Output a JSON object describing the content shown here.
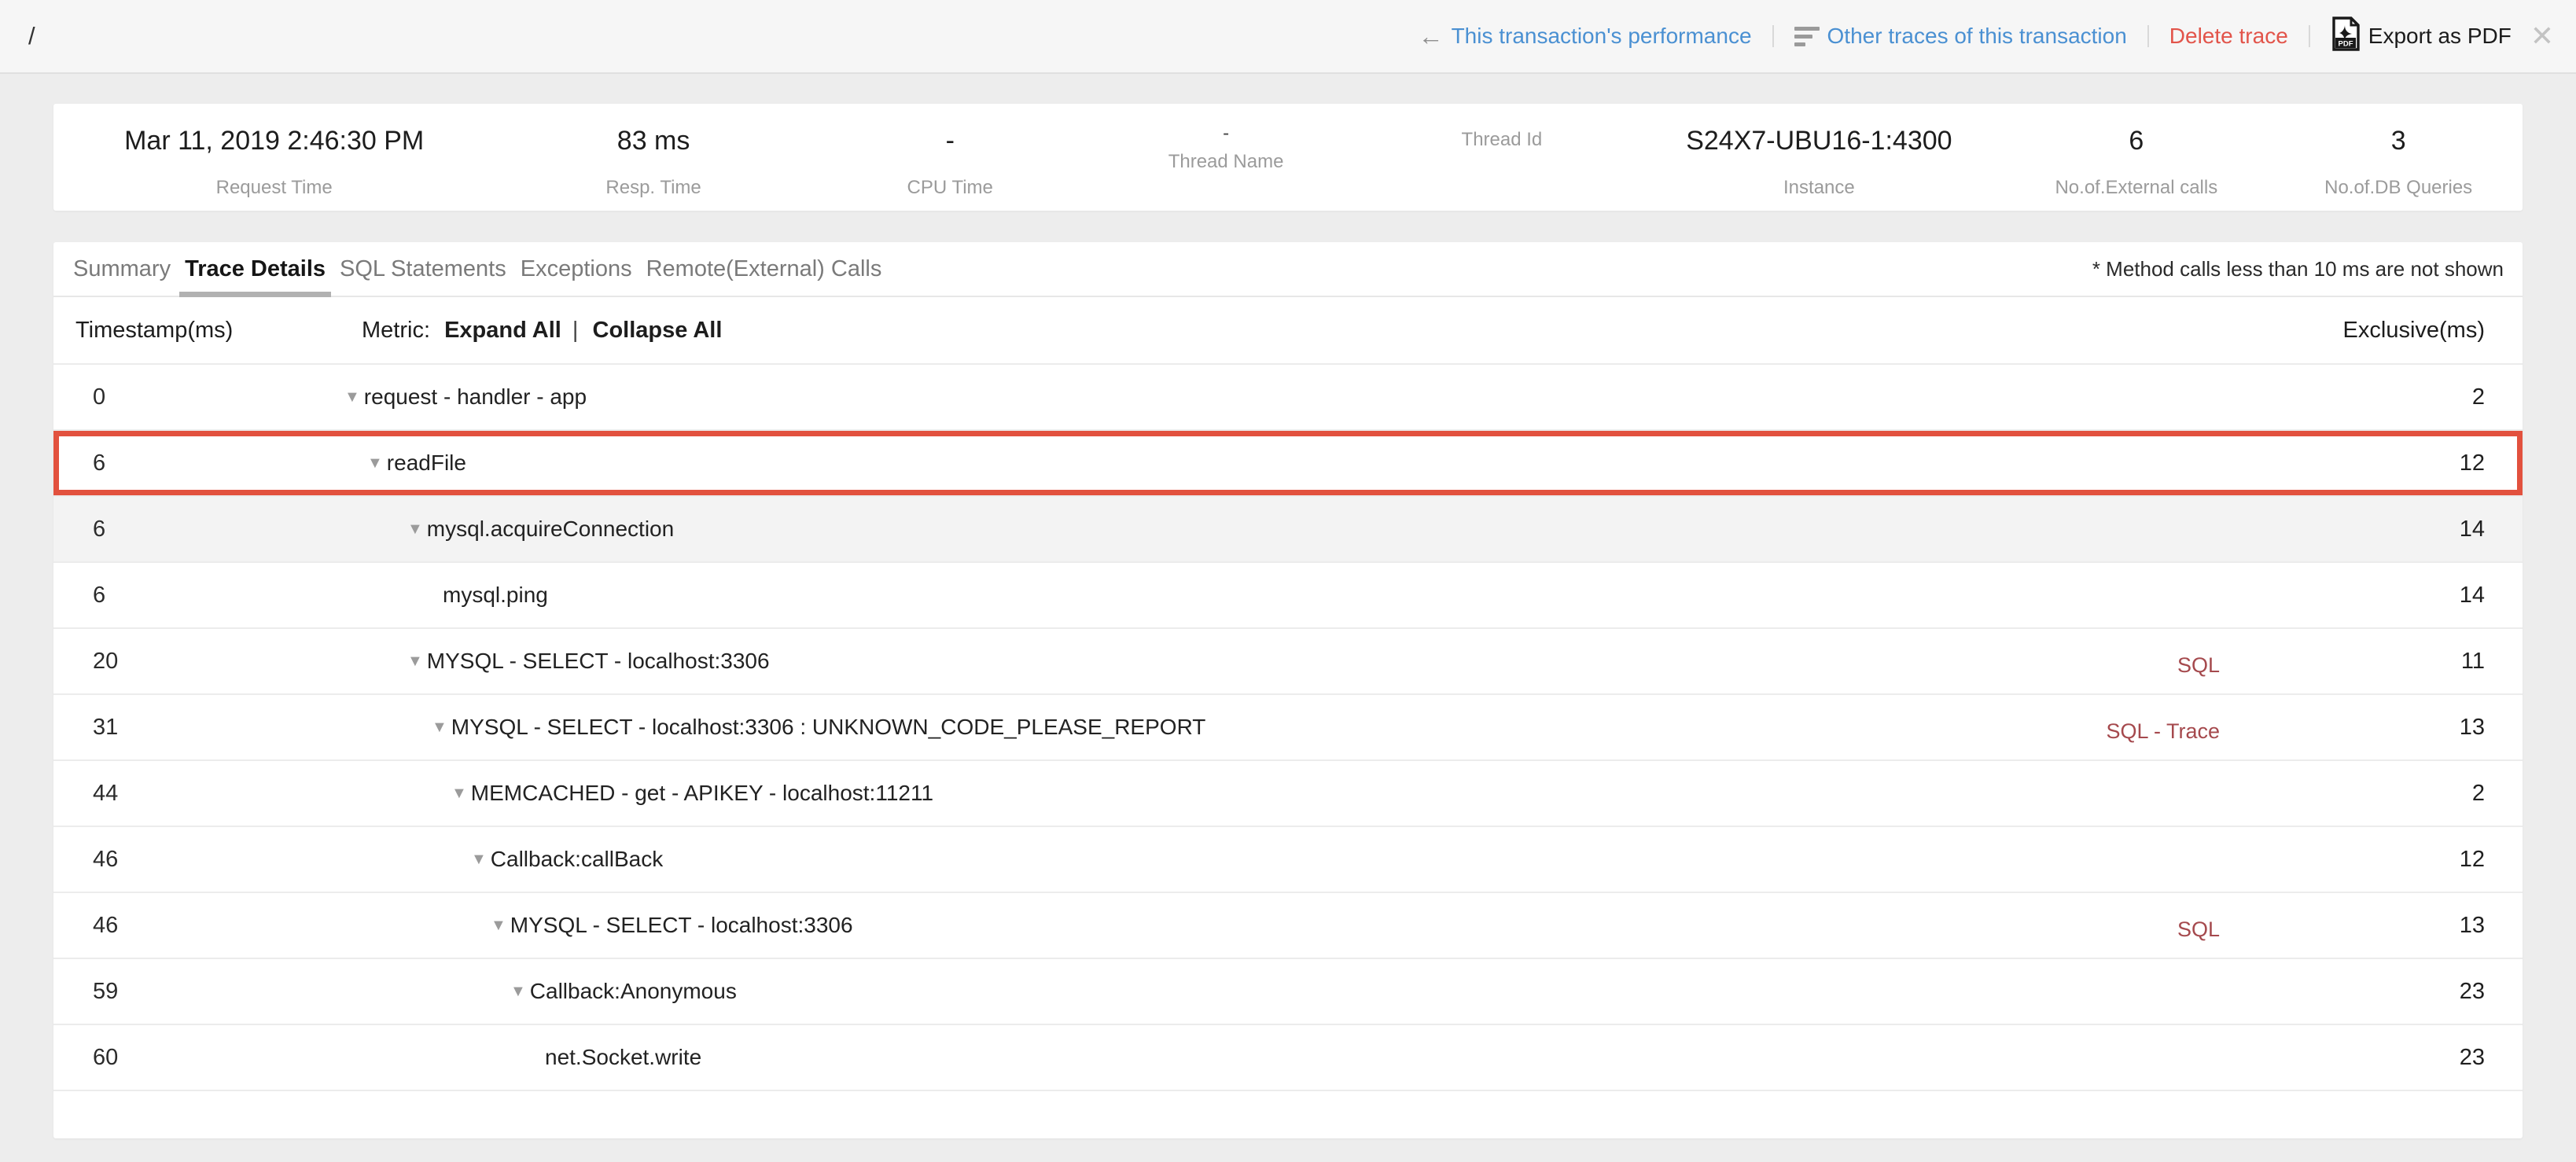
{
  "topbar": {
    "path": "/",
    "performance_link": "This transaction's performance",
    "other_traces_link": "Other traces of this transaction",
    "delete_link": "Delete trace",
    "export_link": "Export as PDF",
    "colors": {
      "link_blue": "#4a90d2",
      "danger_red": "#e2544a"
    }
  },
  "stats": [
    {
      "value": "Mar 11, 2019 2:46:30 PM",
      "label": "Request Time"
    },
    {
      "value": "83 ms",
      "label": "Resp. Time"
    },
    {
      "value": "-",
      "label": "CPU Time"
    },
    {
      "value": "-",
      "label": "Thread Name"
    },
    {
      "value": "",
      "label": "Thread Id"
    },
    {
      "value": "S24X7-UBU16-1:4300",
      "label": "Instance"
    },
    {
      "value": "6",
      "label": "No.of.External calls"
    },
    {
      "value": "3",
      "label": "No.of.DB Queries"
    }
  ],
  "tabs": {
    "items": [
      {
        "label": "Summary",
        "active": false
      },
      {
        "label": "Trace Details",
        "active": true
      },
      {
        "label": "SQL Statements",
        "active": false
      },
      {
        "label": "Exceptions",
        "active": false
      },
      {
        "label": "Remote(External) Calls",
        "active": false
      }
    ],
    "note": "* Method calls less than 10 ms are not shown"
  },
  "table": {
    "headers": {
      "timestamp": "Timestamp(ms)",
      "metric": "Metric:",
      "expand_all": "Expand All",
      "separator": "|",
      "collapse_all": "Collapse All",
      "exclusive": "Exclusive(ms)"
    },
    "link_color": "#a5494d",
    "highlight_color": "#e2513e",
    "rows": [
      {
        "timestamp": "0",
        "metric": "request - handler - app",
        "caret": true,
        "indent": 0,
        "links": [],
        "exclusive": "2",
        "highlight": false,
        "shaded": false
      },
      {
        "timestamp": "6",
        "metric": "readFile",
        "caret": true,
        "indent": 29,
        "links": [],
        "exclusive": "12",
        "highlight": true,
        "shaded": false
      },
      {
        "timestamp": "6",
        "metric": "mysql.acquireConnection",
        "caret": true,
        "indent": 80,
        "links": [],
        "exclusive": "14",
        "highlight": false,
        "shaded": true
      },
      {
        "timestamp": "6",
        "metric": "mysql.ping",
        "caret": false,
        "indent": 125,
        "links": [],
        "exclusive": "14",
        "highlight": false,
        "shaded": false
      },
      {
        "timestamp": "20",
        "metric": "MYSQL - SELECT - localhost:3306",
        "caret": true,
        "indent": 80,
        "links": [
          "SQL"
        ],
        "exclusive": "11",
        "highlight": false,
        "shaded": false
      },
      {
        "timestamp": "31",
        "metric": "MYSQL - SELECT - localhost:3306 : UNKNOWN_CODE_PLEASE_REPORT",
        "caret": true,
        "indent": 111,
        "links": [
          "SQL",
          "Trace"
        ],
        "exclusive": "13",
        "highlight": false,
        "shaded": false
      },
      {
        "timestamp": "44",
        "metric": "MEMCACHED - get - APIKEY - localhost:11211",
        "caret": true,
        "indent": 136,
        "links": [],
        "exclusive": "2",
        "highlight": false,
        "shaded": false
      },
      {
        "timestamp": "46",
        "metric": "Callback:callBack",
        "caret": true,
        "indent": 161,
        "links": [],
        "exclusive": "12",
        "highlight": false,
        "shaded": false
      },
      {
        "timestamp": "46",
        "metric": "MYSQL - SELECT - localhost:3306",
        "caret": true,
        "indent": 186,
        "links": [
          "SQL"
        ],
        "exclusive": "13",
        "highlight": false,
        "shaded": false
      },
      {
        "timestamp": "59",
        "metric": "Callback:Anonymous",
        "caret": true,
        "indent": 211,
        "links": [],
        "exclusive": "23",
        "highlight": false,
        "shaded": false
      },
      {
        "timestamp": "60",
        "metric": "net.Socket.write",
        "caret": false,
        "indent": 255,
        "links": [],
        "exclusive": "23",
        "highlight": false,
        "shaded": false
      }
    ]
  }
}
